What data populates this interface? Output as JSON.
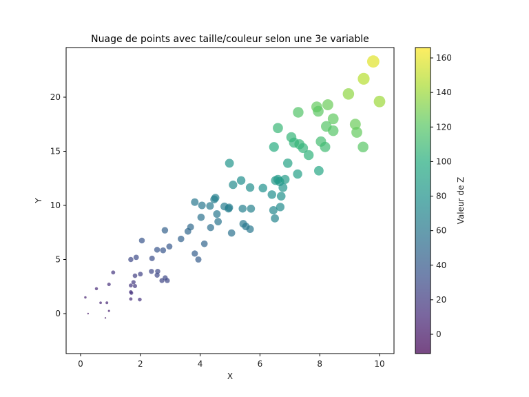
{
  "chart_data": {
    "type": "scatter",
    "title": "Nuage de points avec taille/couleur selon une 3e variable",
    "xlabel": "X",
    "ylabel": "Y",
    "xlim": [
      -0.5,
      10.45
    ],
    "ylim": [
      -3.7,
      24.6
    ],
    "xticks": [
      0,
      2,
      4,
      6,
      8,
      10
    ],
    "yticks": [
      0,
      5,
      10,
      15,
      20
    ],
    "grid": false,
    "colormap": "viridis",
    "alpha": 0.7,
    "colorbar": {
      "label": "Valeur de Z",
      "min": -11,
      "max": 166,
      "ticks": [
        0,
        20,
        40,
        60,
        80,
        100,
        120,
        140,
        160
      ],
      "position": "right"
    },
    "size_encoding": "Z",
    "color_encoding": "Z",
    "points": [
      {
        "x": 0.25,
        "y": 0.0,
        "z": 0
      },
      {
        "x": 0.83,
        "y": -0.4,
        "z": 2
      },
      {
        "x": 0.16,
        "y": 1.5,
        "z": 6
      },
      {
        "x": 0.67,
        "y": 1.0,
        "z": 7
      },
      {
        "x": 0.88,
        "y": 1.0,
        "z": 8
      },
      {
        "x": 0.95,
        "y": 0.25,
        "z": 5
      },
      {
        "x": 0.53,
        "y": 2.3,
        "z": 10
      },
      {
        "x": 0.95,
        "y": 2.7,
        "z": 13
      },
      {
        "x": 1.09,
        "y": 3.8,
        "z": 17
      },
      {
        "x": 1.68,
        "y": 1.35,
        "z": 12
      },
      {
        "x": 1.98,
        "y": 1.3,
        "z": 15
      },
      {
        "x": 1.68,
        "y": 2.0,
        "z": 14
      },
      {
        "x": 1.7,
        "y": 1.9,
        "z": 14
      },
      {
        "x": 1.68,
        "y": 2.6,
        "z": 17
      },
      {
        "x": 1.82,
        "y": 2.55,
        "z": 18
      },
      {
        "x": 1.77,
        "y": 2.9,
        "z": 19
      },
      {
        "x": 1.82,
        "y": 3.5,
        "z": 22
      },
      {
        "x": 2.0,
        "y": 3.65,
        "z": 24
      },
      {
        "x": 1.68,
        "y": 5.0,
        "z": 28
      },
      {
        "x": 1.86,
        "y": 5.2,
        "z": 30
      },
      {
        "x": 2.05,
        "y": 6.75,
        "z": 36
      },
      {
        "x": 2.37,
        "y": 3.9,
        "z": 27
      },
      {
        "x": 2.39,
        "y": 5.1,
        "z": 32
      },
      {
        "x": 2.58,
        "y": 3.9,
        "z": 28
      },
      {
        "x": 2.56,
        "y": 3.55,
        "z": 27
      },
      {
        "x": 2.72,
        "y": 3.05,
        "z": 26
      },
      {
        "x": 2.83,
        "y": 3.3,
        "z": 28
      },
      {
        "x": 2.9,
        "y": 3.05,
        "z": 27
      },
      {
        "x": 2.56,
        "y": 5.9,
        "z": 36
      },
      {
        "x": 2.76,
        "y": 5.85,
        "z": 37
      },
      {
        "x": 2.97,
        "y": 6.2,
        "z": 39
      },
      {
        "x": 2.82,
        "y": 7.7,
        "z": 44
      },
      {
        "x": 3.36,
        "y": 6.9,
        "z": 45
      },
      {
        "x": 3.59,
        "y": 7.6,
        "z": 48
      },
      {
        "x": 3.68,
        "y": 8.0,
        "z": 50
      },
      {
        "x": 3.82,
        "y": 5.55,
        "z": 42
      },
      {
        "x": 3.94,
        "y": 5.0,
        "z": 41
      },
      {
        "x": 4.14,
        "y": 6.45,
        "z": 47
      },
      {
        "x": 3.82,
        "y": 10.3,
        "z": 60
      },
      {
        "x": 4.06,
        "y": 10.0,
        "z": 60
      },
      {
        "x": 4.03,
        "y": 8.9,
        "z": 56
      },
      {
        "x": 4.33,
        "y": 9.95,
        "z": 62
      },
      {
        "x": 4.35,
        "y": 7.95,
        "z": 54
      },
      {
        "x": 4.47,
        "y": 10.55,
        "z": 65
      },
      {
        "x": 4.51,
        "y": 10.7,
        "z": 66
      },
      {
        "x": 4.56,
        "y": 9.2,
        "z": 60
      },
      {
        "x": 4.6,
        "y": 8.5,
        "z": 58
      },
      {
        "x": 4.81,
        "y": 9.9,
        "z": 64
      },
      {
        "x": 4.95,
        "y": 9.7,
        "z": 64
      },
      {
        "x": 4.97,
        "y": 9.8,
        "z": 65
      },
      {
        "x": 5.05,
        "y": 7.45,
        "z": 56
      },
      {
        "x": 5.42,
        "y": 9.7,
        "z": 66
      },
      {
        "x": 5.44,
        "y": 8.3,
        "z": 61
      },
      {
        "x": 5.53,
        "y": 8.05,
        "z": 60
      },
      {
        "x": 5.67,
        "y": 7.8,
        "z": 60
      },
      {
        "x": 5.7,
        "y": 9.7,
        "z": 67
      },
      {
        "x": 4.98,
        "y": 13.9,
        "z": 82
      },
      {
        "x": 5.1,
        "y": 11.9,
        "z": 74
      },
      {
        "x": 5.37,
        "y": 12.3,
        "z": 77
      },
      {
        "x": 5.67,
        "y": 11.65,
        "z": 76
      },
      {
        "x": 6.1,
        "y": 11.6,
        "z": 78
      },
      {
        "x": 6.4,
        "y": 11.0,
        "z": 77
      },
      {
        "x": 6.45,
        "y": 9.55,
        "z": 72
      },
      {
        "x": 6.5,
        "y": 8.8,
        "z": 69
      },
      {
        "x": 6.52,
        "y": 12.3,
        "z": 84
      },
      {
        "x": 6.6,
        "y": 12.4,
        "z": 85
      },
      {
        "x": 6.66,
        "y": 12.2,
        "z": 85
      },
      {
        "x": 6.68,
        "y": 9.85,
        "z": 75
      },
      {
        "x": 6.71,
        "y": 10.85,
        "z": 79
      },
      {
        "x": 6.77,
        "y": 11.65,
        "z": 82
      },
      {
        "x": 6.84,
        "y": 12.4,
        "z": 86
      },
      {
        "x": 6.93,
        "y": 13.9,
        "z": 92
      },
      {
        "x": 7.26,
        "y": 12.9,
        "z": 90
      },
      {
        "x": 7.97,
        "y": 13.2,
        "z": 95
      },
      {
        "x": 6.47,
        "y": 15.4,
        "z": 100
      },
      {
        "x": 6.6,
        "y": 17.15,
        "z": 108
      },
      {
        "x": 7.05,
        "y": 16.3,
        "z": 106
      },
      {
        "x": 7.14,
        "y": 15.8,
        "z": 105
      },
      {
        "x": 7.32,
        "y": 15.65,
        "z": 106
      },
      {
        "x": 7.44,
        "y": 15.3,
        "z": 105
      },
      {
        "x": 7.63,
        "y": 14.65,
        "z": 104
      },
      {
        "x": 7.28,
        "y": 18.6,
        "z": 118
      },
      {
        "x": 7.9,
        "y": 19.1,
        "z": 124
      },
      {
        "x": 7.95,
        "y": 18.7,
        "z": 122
      },
      {
        "x": 8.04,
        "y": 15.9,
        "z": 112
      },
      {
        "x": 8.18,
        "y": 15.4,
        "z": 111
      },
      {
        "x": 8.22,
        "y": 17.3,
        "z": 119
      },
      {
        "x": 8.27,
        "y": 19.3,
        "z": 126
      },
      {
        "x": 8.45,
        "y": 18.0,
        "z": 123
      },
      {
        "x": 8.45,
        "y": 16.9,
        "z": 119
      },
      {
        "x": 8.96,
        "y": 20.3,
        "z": 136
      },
      {
        "x": 9.19,
        "y": 17.5,
        "z": 126
      },
      {
        "x": 9.24,
        "y": 16.75,
        "z": 124
      },
      {
        "x": 9.45,
        "y": 15.4,
        "z": 120
      },
      {
        "x": 9.47,
        "y": 21.7,
        "z": 147
      },
      {
        "x": 9.79,
        "y": 23.3,
        "z": 158
      },
      {
        "x": 10.0,
        "y": 19.6,
        "z": 140
      }
    ]
  }
}
